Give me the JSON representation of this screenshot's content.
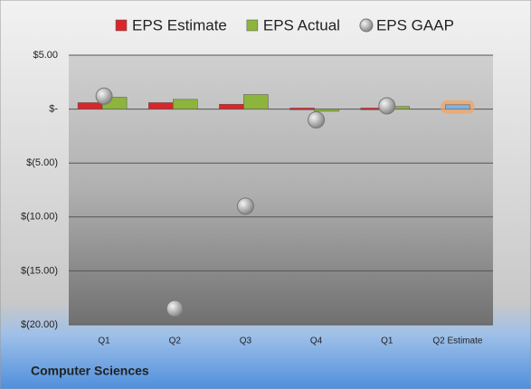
{
  "chart_data": {
    "type": "bar",
    "subtitle": "Computer Sciences",
    "categories": [
      "Q1",
      "Q2",
      "Q3",
      "Q4",
      "Q1",
      "Q2 Estimate"
    ],
    "series": [
      {
        "name": "EPS Estimate",
        "color": "#d9262b",
        "last_point_color": "#7fb2e5",
        "values": [
          0.6,
          0.6,
          0.45,
          0.1,
          0.1,
          0.4
        ]
      },
      {
        "name": "EPS Actual",
        "color": "#8db43c",
        "values": [
          1.1,
          0.9,
          1.35,
          -0.2,
          0.25,
          null
        ]
      },
      {
        "name": "EPS GAAP",
        "color": "#b8b8b8",
        "marker": "circle",
        "values": [
          1.2,
          -18.5,
          -9.0,
          -1.0,
          0.3,
          null
        ]
      }
    ],
    "ylim": [
      -20,
      5
    ],
    "yticks": [
      {
        "value": 5,
        "label": "$5.00"
      },
      {
        "value": 0,
        "label": "$-"
      },
      {
        "value": -5,
        "label": "$(5.00)"
      },
      {
        "value": -10,
        "label": "$(10.00)"
      },
      {
        "value": -15,
        "label": "$(15.00)"
      },
      {
        "value": -20,
        "label": "$(20.00)"
      }
    ],
    "grid": true,
    "legend": "top"
  }
}
